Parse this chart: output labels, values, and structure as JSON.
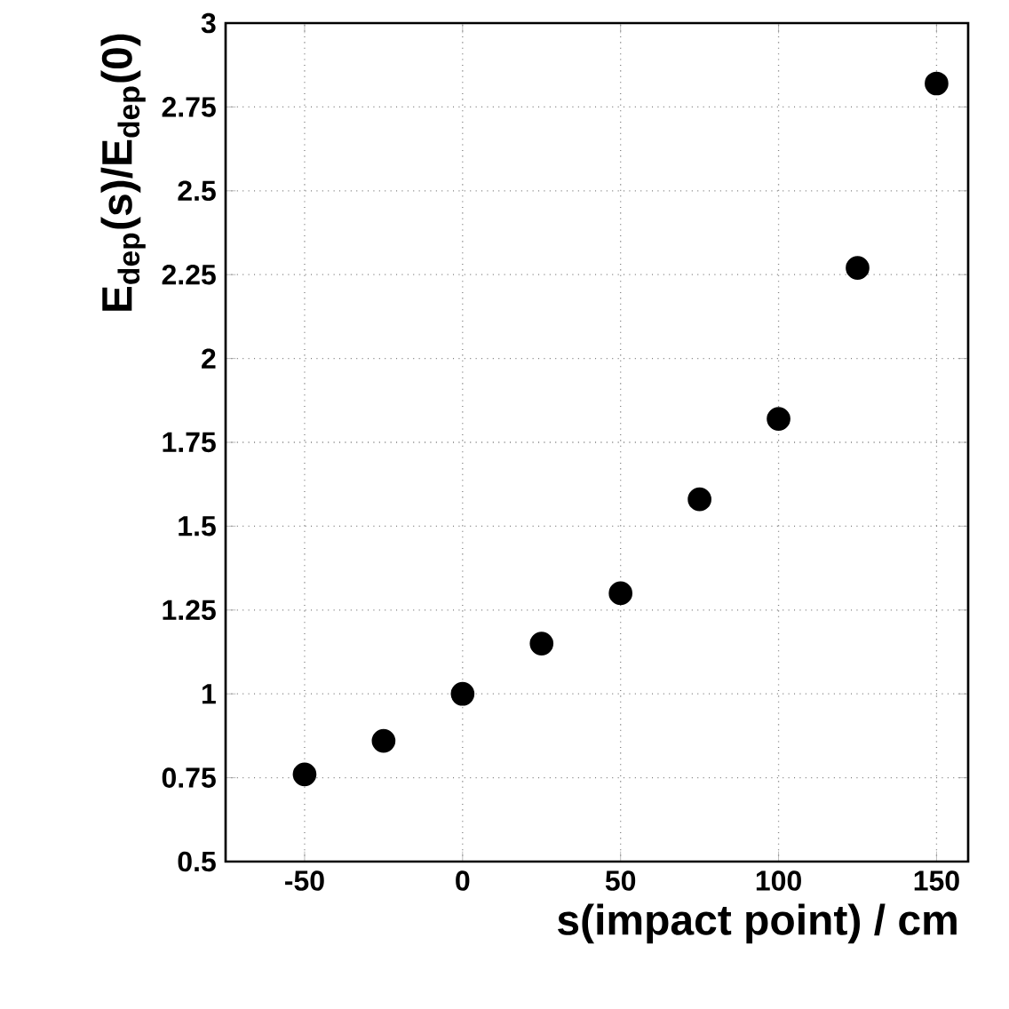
{
  "chart_data": {
    "type": "scatter",
    "xlabel": "s(impact point) / cm",
    "ylabel": "E$_{dep}$(s)/E$_{dep}$(0)",
    "x": [
      -50,
      -25,
      0,
      25,
      50,
      75,
      100,
      125,
      150
    ],
    "values": [
      0.76,
      0.86,
      1.0,
      1.15,
      1.3,
      1.58,
      1.82,
      2.27,
      2.82
    ],
    "color": "#000000",
    "marker": "circle",
    "grid": true,
    "xlim": [
      -75,
      160
    ],
    "xticks": [
      -50,
      0,
      50,
      100,
      150
    ],
    "ylim": [
      0.5,
      3
    ],
    "yticks": [
      0.5,
      0.75,
      1,
      1.25,
      1.5,
      1.75,
      2,
      2.25,
      2.5,
      2.75,
      3
    ]
  }
}
